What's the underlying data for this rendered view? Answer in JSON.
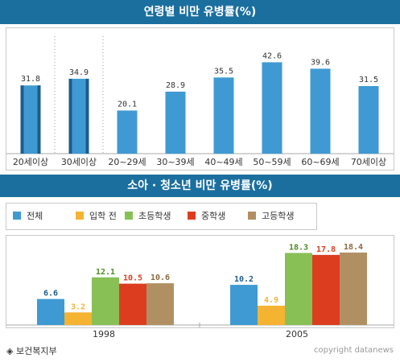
{
  "banner1": "연령별 비만 유병률(%)",
  "banner2": "소아 · 청소년 비만 유병률(%)",
  "footer": {
    "source": "보건복지부",
    "source_icon": "diamond-icon",
    "copyright": "copyright datanews"
  },
  "colors": {
    "blue": "#3f9ad3",
    "dark_blue": "#1c5d8c",
    "orange": "#f5b332",
    "green": "#89c055",
    "red": "#dd3d1f",
    "tan": "#b09063",
    "banner": "#1b6f9e"
  },
  "chart_data": [
    {
      "type": "bar",
      "title": "연령별 비만 유병률(%)",
      "categories": [
        "20세이상",
        "30세이상",
        "20~29세",
        "30~39세",
        "40~49세",
        "50~59세",
        "60~69세",
        "70세이상"
      ],
      "values": [
        31.8,
        34.9,
        20.1,
        28.9,
        35.5,
        42.6,
        39.6,
        31.5
      ],
      "labels": [
        "31.8",
        "34.9",
        "20.1",
        "28.9",
        "35.5",
        "42.6",
        "39.6",
        "31.5"
      ],
      "ylim": [
        0,
        45
      ]
    },
    {
      "type": "bar",
      "title": "소아 · 청소년 비만 유병률(%)",
      "categories": [
        "1998",
        "2005"
      ],
      "series": [
        {
          "name": "전체",
          "values": [
            6.6,
            10.2
          ],
          "labels": [
            "6.6",
            "10.2"
          ]
        },
        {
          "name": "입학 전",
          "values": [
            3.2,
            4.9
          ],
          "labels": [
            "3.2",
            "4.9"
          ]
        },
        {
          "name": "초등학생",
          "values": [
            12.1,
            18.3
          ],
          "labels": [
            "12.1",
            "18.3"
          ]
        },
        {
          "name": "중학생",
          "values": [
            10.5,
            17.8
          ],
          "labels": [
            "10.5",
            "17.8"
          ]
        },
        {
          "name": "고등학생",
          "values": [
            10.6,
            18.4
          ],
          "labels": [
            "10.6",
            "18.4"
          ]
        }
      ],
      "ylim": [
        0,
        19
      ]
    }
  ]
}
